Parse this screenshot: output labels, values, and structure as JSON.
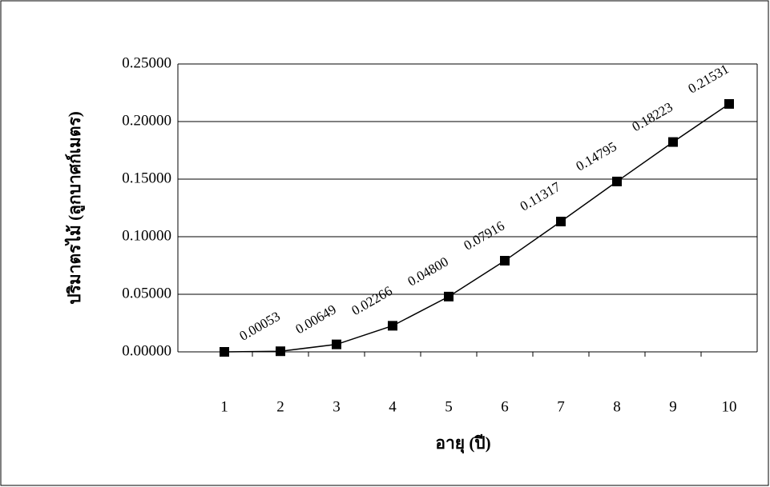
{
  "chart_data": {
    "type": "line",
    "categories": [
      "1",
      "2",
      "3",
      "4",
      "5",
      "6",
      "7",
      "8",
      "9",
      "10"
    ],
    "series": [
      {
        "name": null,
        "color": "#000000",
        "values": [
          0,
          0.00053,
          0.00649,
          0.02266,
          0.048,
          0.07916,
          0.11317,
          0.14795,
          0.18223,
          0.21531
        ],
        "value_labels": [
          null,
          "0.00053",
          "0.00649",
          "0.02266",
          "0.04800",
          "0.07916",
          "0.11317",
          "0.14795",
          "0.18223",
          "0.21531"
        ]
      }
    ],
    "xlabel": "อายุ (ปี)",
    "ylabel": "ปริมาตรไม้ (ลูกบาศก์เมตร)",
    "ylim": [
      0,
      0.25
    ],
    "yticks": [
      {
        "value": 0,
        "label": "0.00000"
      },
      {
        "value": 0.05,
        "label": "0.05000"
      },
      {
        "value": 0.1,
        "label": "0.10000"
      },
      {
        "value": 0.15,
        "label": "0.15000"
      },
      {
        "value": 0.2,
        "label": "0.20000"
      },
      {
        "value": 0.25,
        "label": "0.25000"
      }
    ],
    "grid": true
  }
}
